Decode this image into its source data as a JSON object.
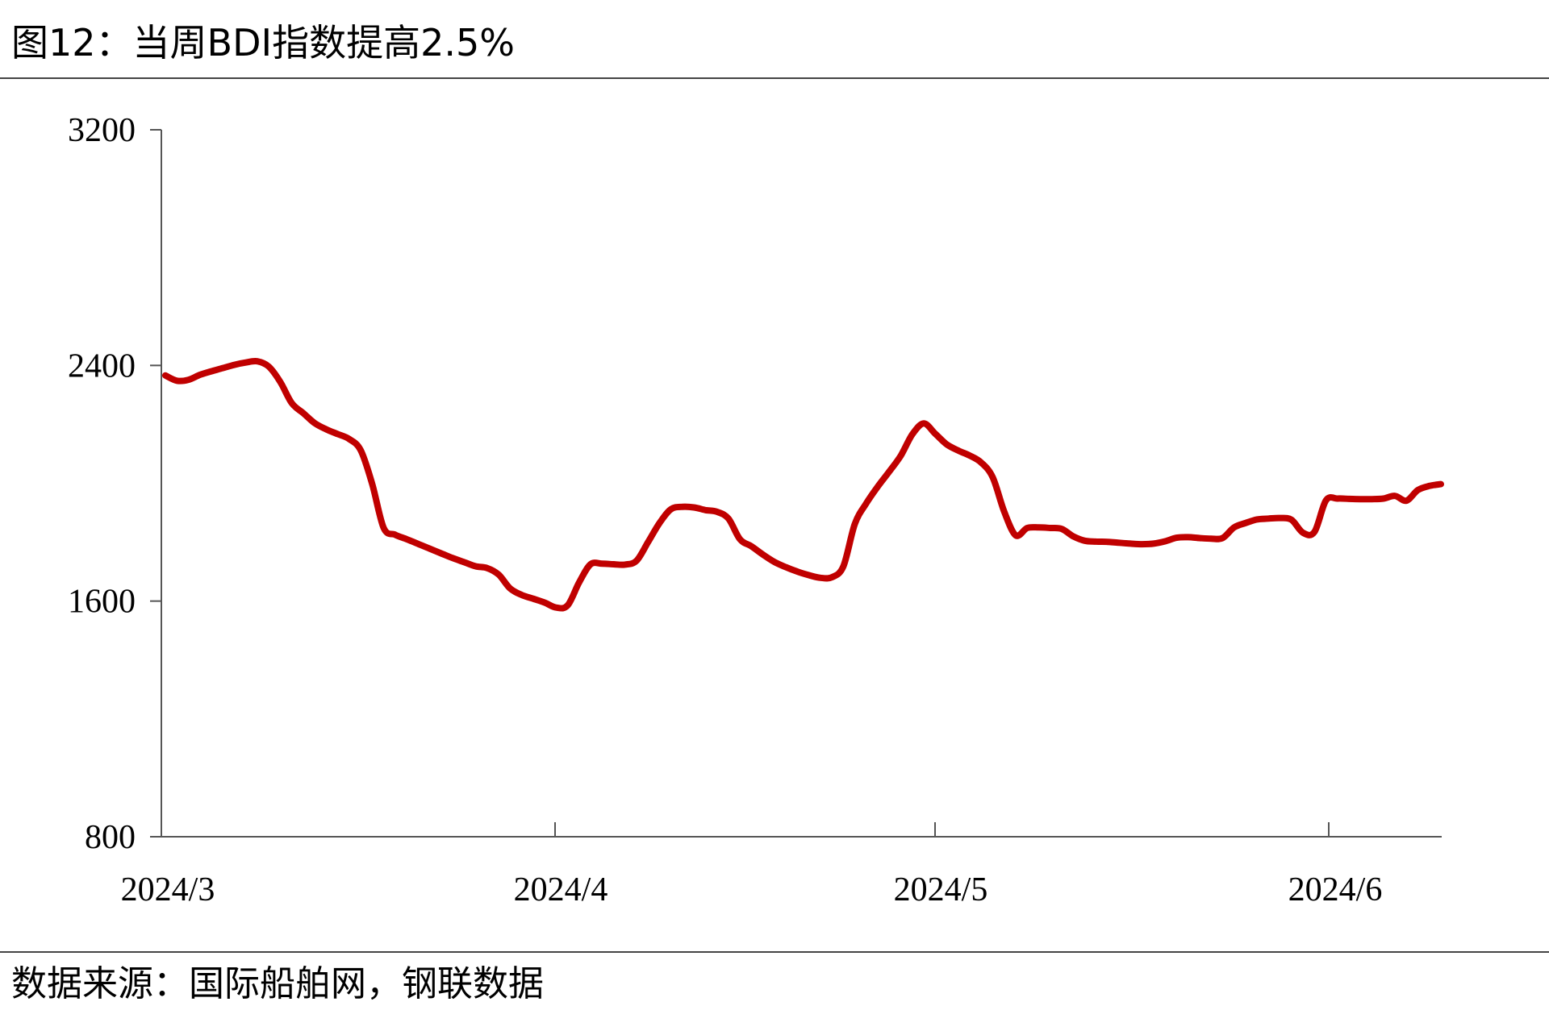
{
  "title": "图12：当周BDI指数提高2.5%",
  "source": "数据来源：国际船舶网，钢联数据",
  "colors": {
    "series": "#C00000",
    "axis": "#555555",
    "rule": "#444444"
  },
  "chart_data": {
    "type": "line",
    "title": "图12：当周BDI指数提高2.5%",
    "xlabel": "",
    "ylabel": "",
    "ylim": [
      800,
      3200
    ],
    "yticks": [
      800,
      1600,
      2400,
      3200
    ],
    "xtick_labels": [
      "2024/3",
      "2024/4",
      "2024/5",
      "2024/6"
    ],
    "xlim": [
      "2024-03-01",
      "2024-06-20"
    ],
    "grid": false,
    "legend": "none",
    "series": [
      {
        "name": "",
        "color": "#C00000",
        "points": [
          [
            "2024-03-01",
            2366
          ],
          [
            "2024-03-02",
            2348
          ],
          [
            "2024-03-03",
            2351
          ],
          [
            "2024-03-04",
            2368
          ],
          [
            "2024-03-05",
            2380
          ],
          [
            "2024-03-06",
            2391
          ],
          [
            "2024-03-07",
            2402
          ],
          [
            "2024-03-08",
            2410
          ],
          [
            "2024-03-09",
            2414
          ],
          [
            "2024-03-10",
            2396
          ],
          [
            "2024-03-11",
            2344
          ],
          [
            "2024-03-12",
            2272
          ],
          [
            "2024-03-13",
            2238
          ],
          [
            "2024-03-14",
            2204
          ],
          [
            "2024-03-15",
            2183
          ],
          [
            "2024-03-16",
            2167
          ],
          [
            "2024-03-17",
            2150
          ],
          [
            "2024-03-18",
            2112
          ],
          [
            "2024-03-19",
            1997
          ],
          [
            "2024-03-20",
            1848
          ],
          [
            "2024-03-21",
            1825
          ],
          [
            "2024-03-22",
            1810
          ],
          [
            "2024-03-23",
            1794
          ],
          [
            "2024-03-24",
            1778
          ],
          [
            "2024-03-25",
            1762
          ],
          [
            "2024-03-26",
            1746
          ],
          [
            "2024-03-27",
            1732
          ],
          [
            "2024-03-28",
            1718
          ],
          [
            "2024-03-29",
            1712
          ],
          [
            "2024-03-30",
            1690
          ],
          [
            "2024-03-31",
            1643
          ],
          [
            "2024-04-01",
            1621
          ],
          [
            "2024-04-02",
            1608
          ],
          [
            "2024-04-03",
            1595
          ],
          [
            "2024-04-04",
            1578
          ],
          [
            "2024-04-05",
            1585
          ],
          [
            "2024-04-06",
            1663
          ],
          [
            "2024-04-07",
            1725
          ],
          [
            "2024-04-08",
            1727
          ],
          [
            "2024-04-09",
            1725
          ],
          [
            "2024-04-10",
            1724
          ],
          [
            "2024-04-11",
            1737
          ],
          [
            "2024-04-12",
            1800
          ],
          [
            "2024-04-13",
            1865
          ],
          [
            "2024-04-14",
            1912
          ],
          [
            "2024-04-15",
            1920
          ],
          [
            "2024-04-16",
            1918
          ],
          [
            "2024-04-17",
            1909
          ],
          [
            "2024-04-18",
            1903
          ],
          [
            "2024-04-19",
            1880
          ],
          [
            "2024-04-20",
            1810
          ],
          [
            "2024-04-21",
            1786
          ],
          [
            "2024-04-22",
            1758
          ],
          [
            "2024-04-23",
            1733
          ],
          [
            "2024-04-24",
            1715
          ],
          [
            "2024-04-25",
            1700
          ],
          [
            "2024-04-26",
            1688
          ],
          [
            "2024-04-27",
            1679
          ],
          [
            "2024-04-28",
            1681
          ],
          [
            "2024-04-29",
            1718
          ],
          [
            "2024-04-30",
            1862
          ],
          [
            "2024-05-01",
            1932
          ],
          [
            "2024-05-02",
            1989
          ],
          [
            "2024-05-03",
            2040
          ],
          [
            "2024-05-04",
            2094
          ],
          [
            "2024-05-05",
            2166
          ],
          [
            "2024-05-06",
            2203
          ],
          [
            "2024-05-07",
            2168
          ],
          [
            "2024-05-08",
            2132
          ],
          [
            "2024-05-09",
            2111
          ],
          [
            "2024-05-10",
            2094
          ],
          [
            "2024-05-11",
            2070
          ],
          [
            "2024-05-12",
            2020
          ],
          [
            "2024-05-13",
            1903
          ],
          [
            "2024-05-14",
            1823
          ],
          [
            "2024-05-15",
            1848
          ],
          [
            "2024-05-16",
            1850
          ],
          [
            "2024-05-17",
            1848
          ],
          [
            "2024-05-18",
            1845
          ],
          [
            "2024-05-19",
            1820
          ],
          [
            "2024-05-20",
            1805
          ],
          [
            "2024-05-21",
            1802
          ],
          [
            "2024-05-22",
            1801
          ],
          [
            "2024-05-23",
            1798
          ],
          [
            "2024-05-24",
            1795
          ],
          [
            "2024-05-25",
            1793
          ],
          [
            "2024-05-26",
            1795
          ],
          [
            "2024-05-27",
            1803
          ],
          [
            "2024-05-28",
            1815
          ],
          [
            "2024-05-29",
            1817
          ],
          [
            "2024-05-30",
            1814
          ],
          [
            "2024-05-31",
            1812
          ],
          [
            "2024-06-01",
            1814
          ],
          [
            "2024-06-02",
            1850
          ],
          [
            "2024-06-03",
            1865
          ],
          [
            "2024-06-04",
            1877
          ],
          [
            "2024-06-05",
            1880
          ],
          [
            "2024-06-06",
            1882
          ],
          [
            "2024-06-07",
            1876
          ],
          [
            "2024-06-08",
            1832
          ],
          [
            "2024-06-09",
            1835
          ],
          [
            "2024-06-10",
            1942
          ],
          [
            "2024-06-11",
            1948
          ],
          [
            "2024-06-12",
            1947
          ],
          [
            "2024-06-13",
            1946
          ],
          [
            "2024-06-14",
            1946
          ],
          [
            "2024-06-15",
            1948
          ],
          [
            "2024-06-16",
            1957
          ],
          [
            "2024-06-17",
            1941
          ],
          [
            "2024-06-18",
            1977
          ],
          [
            "2024-06-19",
            1991
          ],
          [
            "2024-06-20",
            1997
          ]
        ]
      }
    ]
  }
}
